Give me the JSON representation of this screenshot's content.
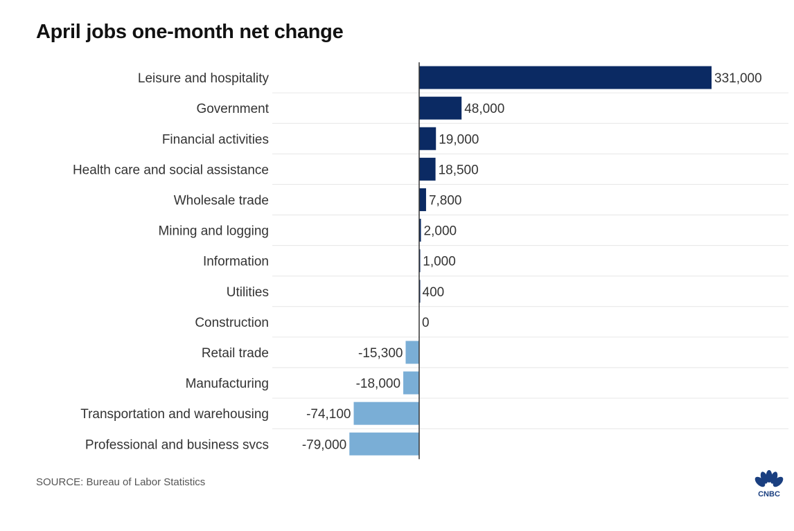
{
  "chart_data": {
    "type": "bar",
    "orientation": "horizontal",
    "title": "April jobs one-month net change",
    "categories": [
      "Leisure and hospitality",
      "Government",
      "Financial activities",
      "Health care and social assistance",
      "Wholesale trade",
      "Mining and logging",
      "Information",
      "Utilities",
      "Construction",
      "Retail trade",
      "Manufacturing",
      "Transportation and warehousing",
      "Professional and business svcs"
    ],
    "values": [
      331000,
      48000,
      19000,
      18500,
      7800,
      2000,
      1000,
      400,
      0,
      -15300,
      -18000,
      -74100,
      -79000
    ],
    "value_labels": [
      "331,000",
      "48,000",
      "19,000",
      "18,500",
      "7,800",
      "2,000",
      "1,000",
      "400",
      "0",
      "-15,300",
      "-18,000",
      "-74,100",
      "-79,000"
    ],
    "xlim": [
      -79000,
      331000
    ],
    "colors": {
      "positive": "#0b2a63",
      "negative": "#7aaed6"
    },
    "grid": false
  },
  "source": "SOURCE: Bureau of Labor Statistics",
  "logo_text": "CNBC"
}
